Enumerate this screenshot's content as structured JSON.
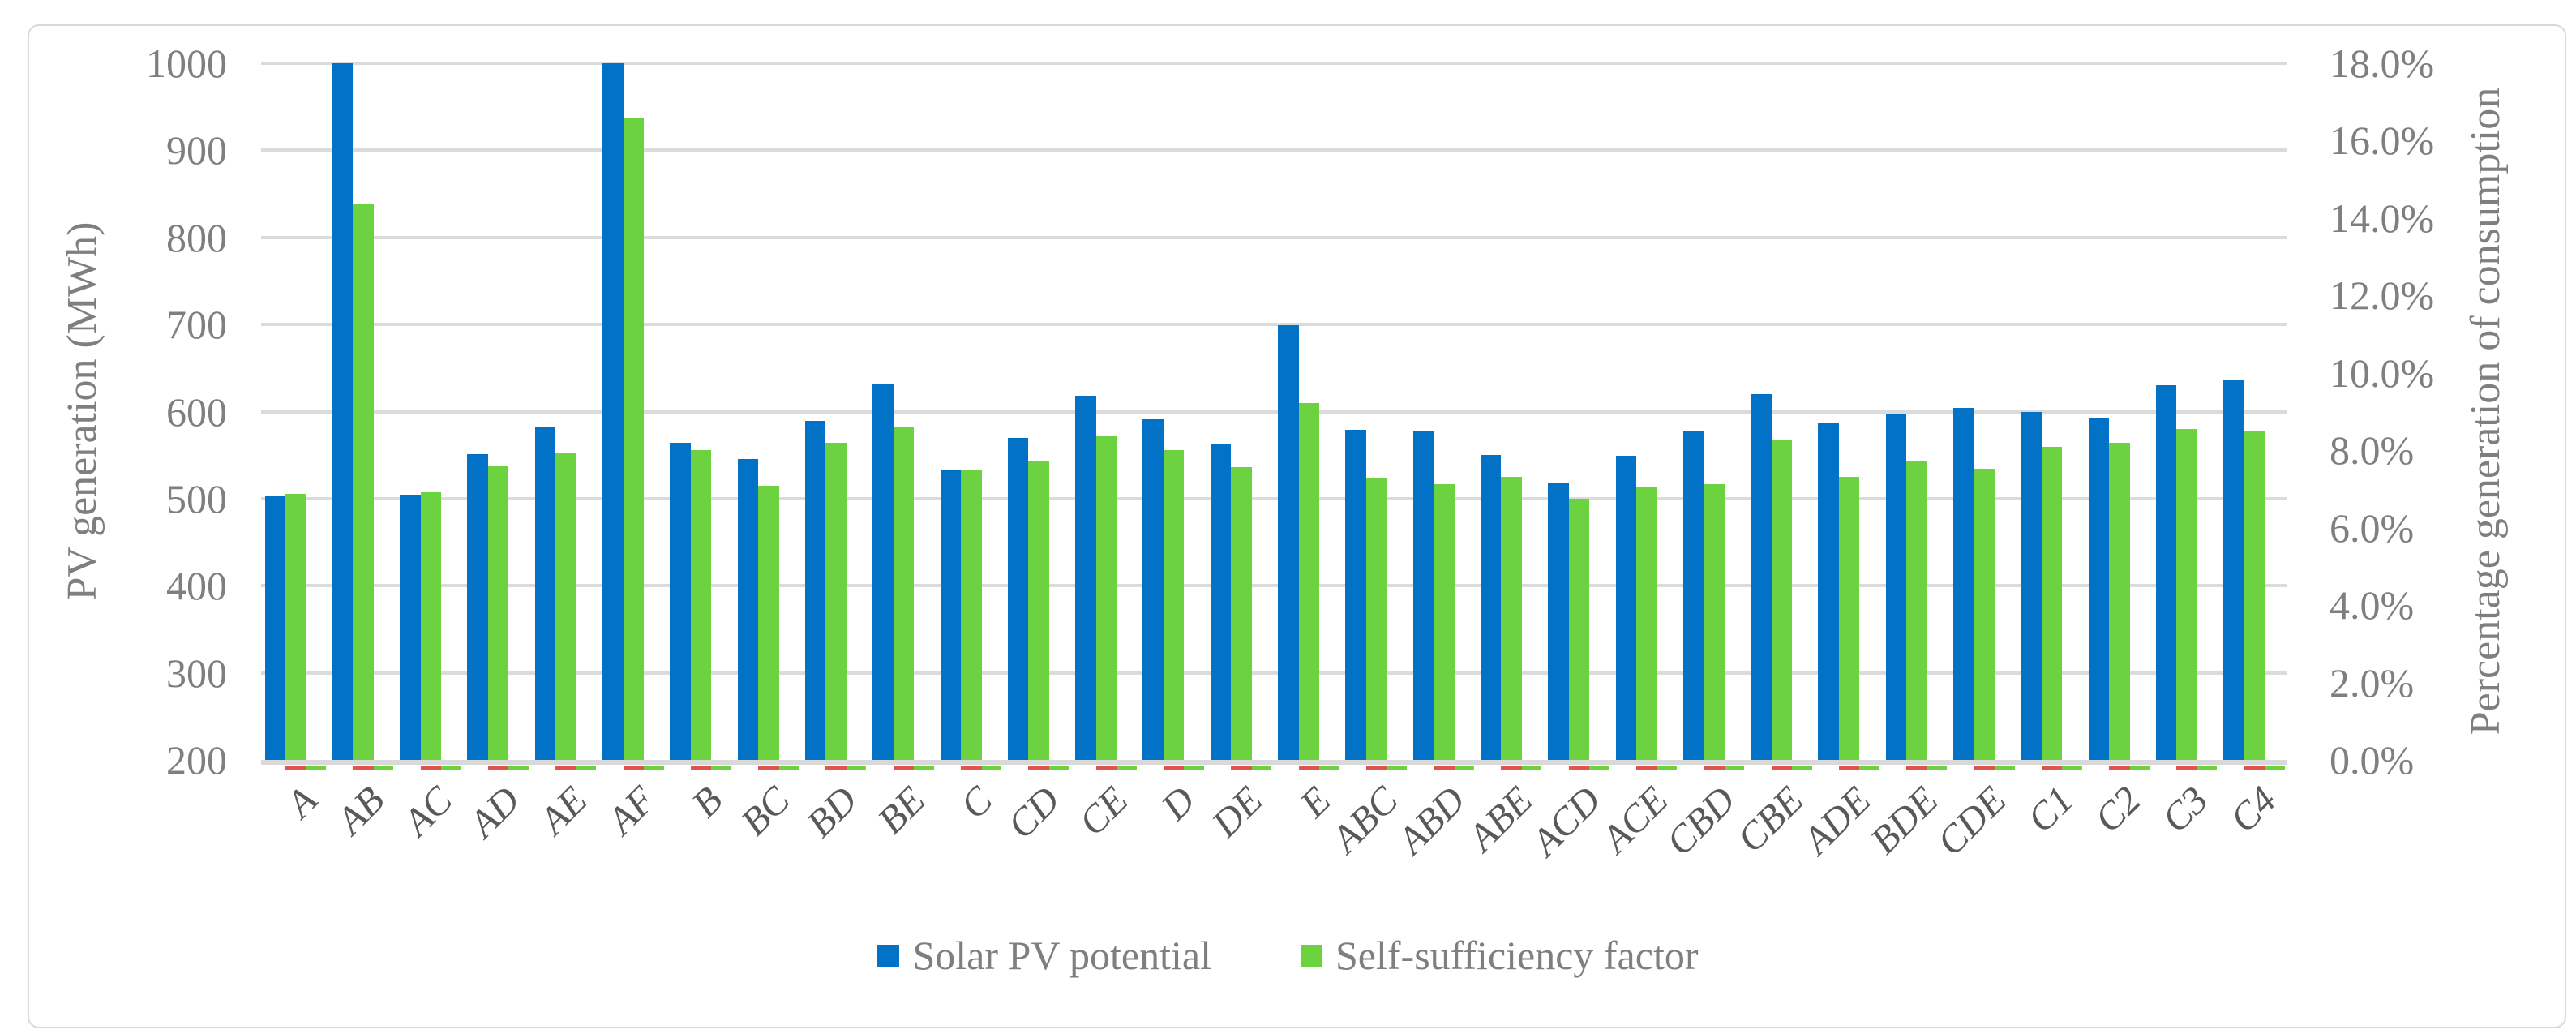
{
  "chart_data": {
    "type": "bar",
    "title": "",
    "categories": [
      "A",
      "AB",
      "AC",
      "AD",
      "AE",
      "AF",
      "B",
      "BC",
      "BD",
      "BE",
      "C",
      "CD",
      "CE",
      "D",
      "DE",
      "E",
      "ABC",
      "ABD",
      "ABE",
      "ACD",
      "ACE",
      "CBD",
      "CBE",
      "ADE",
      "BDE",
      "CDE",
      "C1",
      "C2",
      "C3",
      "C4"
    ],
    "series": [
      {
        "name": "Solar PV potential",
        "axis": "left",
        "unit": "MWh",
        "color": "#0172C6",
        "values": [
          504,
          1000,
          505,
          551,
          582,
          1000,
          564,
          546,
          589,
          631,
          533,
          570,
          618,
          591,
          563,
          699,
          579,
          578,
          550,
          518,
          549,
          578,
          620,
          587,
          597,
          604,
          600,
          593,
          630,
          636
        ]
      },
      {
        "name": "Self-sufficiency factor",
        "axis": "right",
        "unit": "%",
        "color": "#6CD23F",
        "values": [
          6.88,
          14.38,
          6.91,
          7.58,
          7.94,
          16.58,
          8.01,
          7.09,
          8.19,
          8.6,
          7.49,
          7.72,
          8.37,
          8.01,
          7.56,
          9.23,
          7.29,
          7.13,
          7.31,
          6.75,
          7.04,
          7.13,
          8.26,
          7.31,
          7.72,
          7.52,
          8.1,
          8.19,
          8.55,
          8.48
        ]
      }
    ],
    "left_axis": {
      "label": "PV generation (MWh)",
      "min": 200,
      "max": 1000,
      "step": 100,
      "tick_labels": [
        "200",
        "300",
        "400",
        "500",
        "600",
        "700",
        "800",
        "900",
        "1000"
      ]
    },
    "right_axis": {
      "label": "Percentage generation of consumption",
      "min": 0,
      "max": 18,
      "step": 2,
      "tick_labels": [
        "0.0%",
        "2.0%",
        "4.0%",
        "6.0%",
        "8.0%",
        "10.0%",
        "12.0%",
        "14.0%",
        "16.0%",
        "18.0%"
      ]
    },
    "legend_position": "bottom-center",
    "grid": true,
    "baseline_markers": {
      "red_color": "#E2534D",
      "green_color": "#6CD23F"
    }
  },
  "colors": {
    "gridline": "#DBDBDB",
    "axis_line": "#D9D9D9",
    "frame_border": "#D9D9D9",
    "tick_text": "#7F7F7F",
    "category_text": "#595959",
    "background": "#FFFFFF"
  }
}
